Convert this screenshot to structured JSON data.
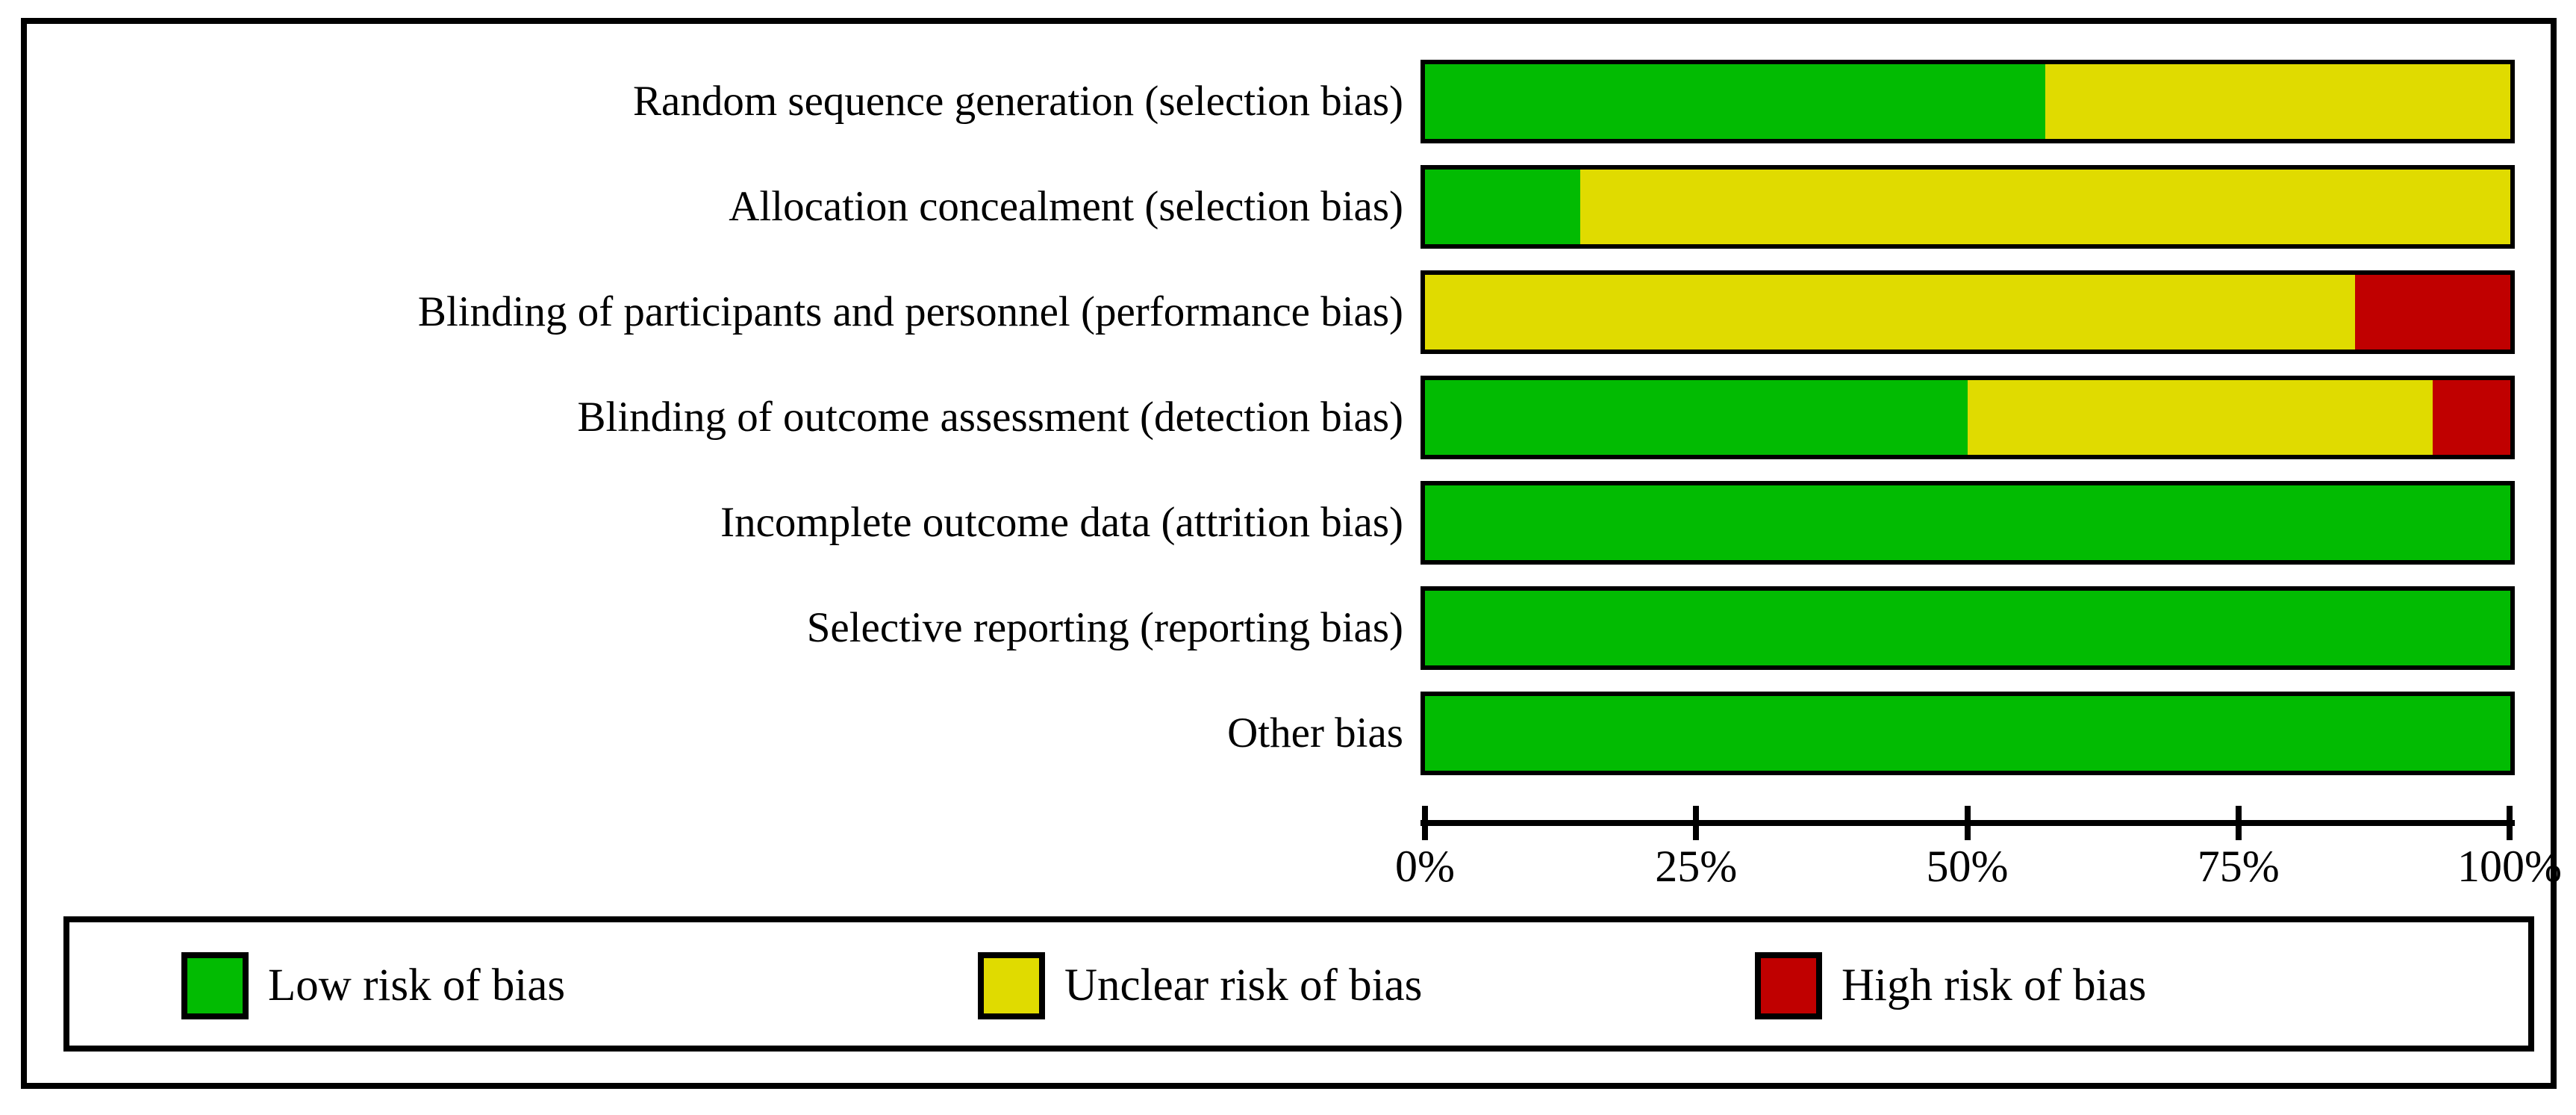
{
  "figure": {
    "kind": "risk-of-bias-graph"
  },
  "colors": {
    "low": "#02bb02",
    "unclear": "#e0db00",
    "high": "#c00000",
    "outline": "#000000",
    "background": "#ffffff"
  },
  "chart_data": {
    "type": "bar",
    "orientation": "horizontal",
    "stacked": true,
    "grid": false,
    "legend_position": "bottom",
    "categories": [
      "Random sequence generation (selection bias)",
      "Allocation concealment (selection bias)",
      "Blinding of participants and personnel (performance bias)",
      "Blinding of outcome assessment (detection bias)",
      "Incomplete outcome data (attrition bias)",
      "Selective reporting (reporting bias)",
      "Other bias"
    ],
    "series": [
      {
        "name": "Low risk of bias",
        "color": "#02bb02",
        "values": [
          57.14,
          14.29,
          0,
          50,
          100,
          100,
          100
        ]
      },
      {
        "name": "Unclear risk of bias",
        "color": "#e0db00",
        "values": [
          42.86,
          85.71,
          85.71,
          42.86,
          0,
          0,
          0
        ]
      },
      {
        "name": "High risk of bias",
        "color": "#c00000",
        "values": [
          0,
          0,
          14.29,
          7.14,
          0,
          0,
          0
        ]
      }
    ],
    "x_axis": {
      "range": [
        0,
        100
      ],
      "unit": "percent",
      "ticks": [
        "0%",
        "25%",
        "50%",
        "75%",
        "100%"
      ]
    }
  }
}
